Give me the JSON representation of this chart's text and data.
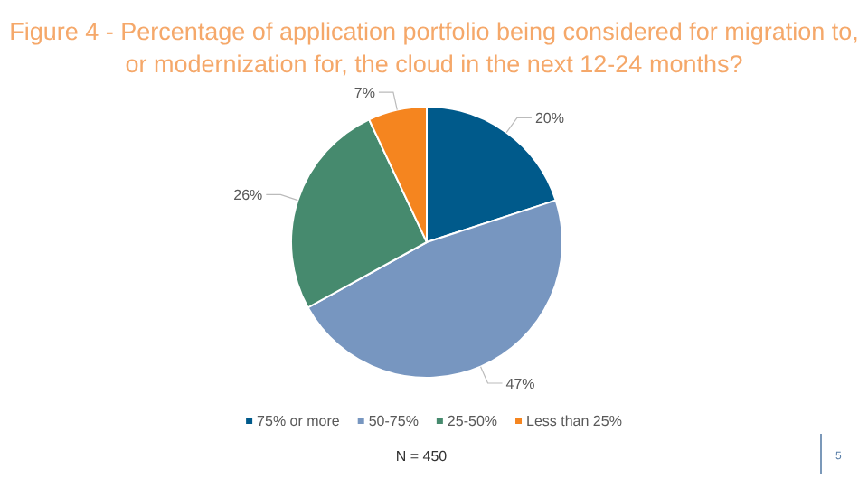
{
  "chart_data": {
    "type": "pie",
    "title": "Figure 4 - Percentage of application portfolio being considered for migration to, or modernization for, the cloud in the next 12-24 months?",
    "categories": [
      "75% or more",
      "50-75%",
      "25-50%",
      "Less than 25%"
    ],
    "values": [
      20,
      47,
      26,
      7
    ],
    "value_labels": [
      "20%",
      "47%",
      "26%",
      "7%"
    ],
    "colors": [
      "#005a8b",
      "#7796c0",
      "#468a6e",
      "#f5851f"
    ],
    "legend": "bottom",
    "annotations": [
      "N = 450",
      "5"
    ]
  }
}
